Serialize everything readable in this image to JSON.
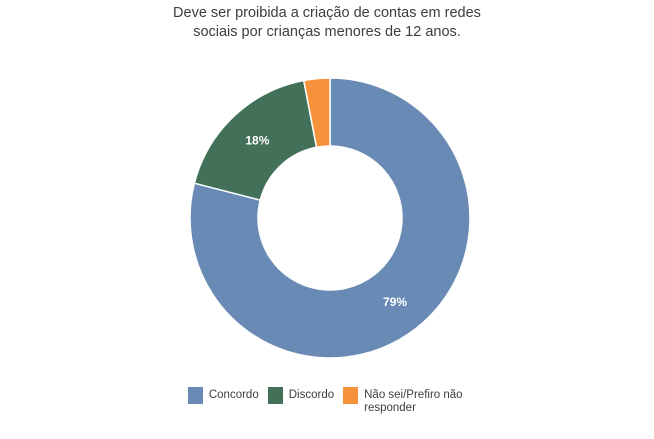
{
  "page": {
    "background": "#ffffff"
  },
  "chart_data": {
    "type": "pie",
    "subtype": "donut",
    "title": "Deve ser proibida a criação de contas em redes sociais por crianças menores de 12 anos.",
    "direction": "clockwise",
    "start_angle_deg": 0,
    "inner_radius_ratio": 0.515,
    "legend_position": "bottom",
    "unit": "%",
    "slices": [
      {
        "label": "Concordo",
        "value": 79,
        "pct_label": "79%",
        "color": "#688AB5"
      },
      {
        "label": "Discordo",
        "value": 18,
        "pct_label": "18%",
        "color": "#427059"
      },
      {
        "label": "Não sei/Prefiro não responder",
        "value": 3,
        "pct_label": null,
        "color": "#F5923A"
      }
    ]
  },
  "styles": {
    "title_color": "#3d3d3d",
    "pct_label_color": "#ffffff",
    "slice_border_color": "#ffffff"
  }
}
